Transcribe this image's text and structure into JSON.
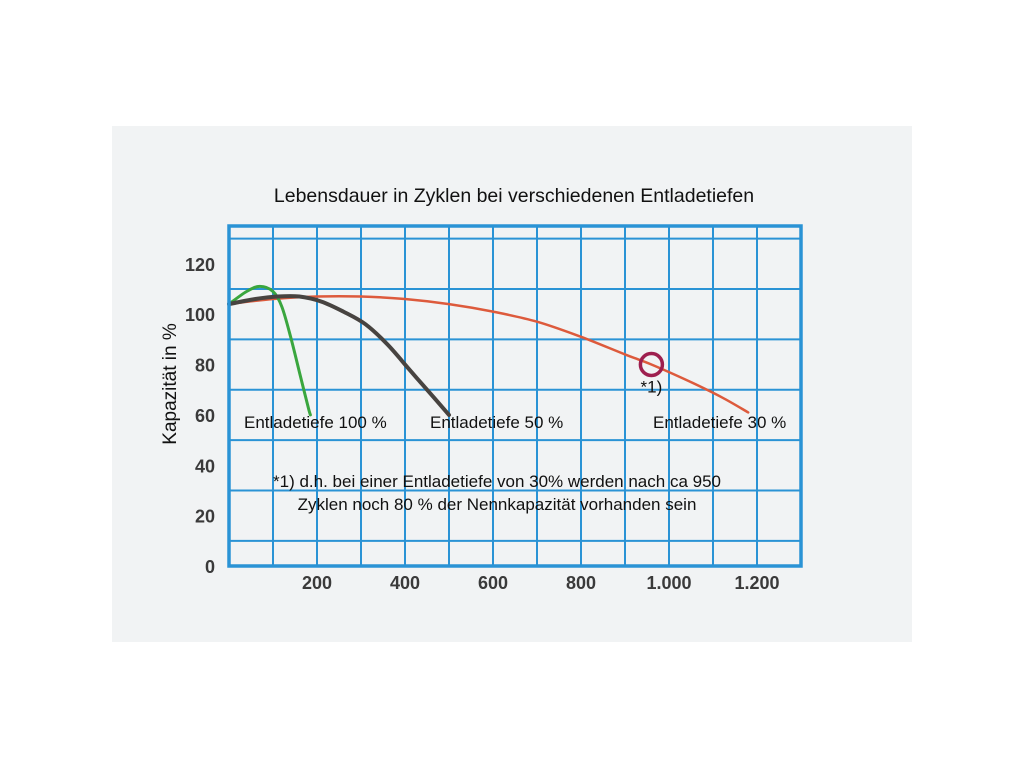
{
  "chart_data": {
    "type": "line",
    "title": "Lebensdauer in Zyklen bei verschiedenen Entladetiefen",
    "xlabel": "",
    "ylabel": "Kapazität in %",
    "xlim": [
      0,
      1300
    ],
    "ylim": [
      0,
      135
    ],
    "grid": true,
    "x_ticks": [
      {
        "value": 200,
        "label": "200"
      },
      {
        "value": 400,
        "label": "400"
      },
      {
        "value": 600,
        "label": "600"
      },
      {
        "value": 800,
        "label": "800"
      },
      {
        "value": 1000,
        "label": "1.000"
      },
      {
        "value": 1200,
        "label": "1.200"
      }
    ],
    "y_ticks": [
      {
        "value": 0,
        "label": "0"
      },
      {
        "value": 20,
        "label": "20"
      },
      {
        "value": 40,
        "label": "40"
      },
      {
        "value": 60,
        "label": "60"
      },
      {
        "value": 80,
        "label": "80"
      },
      {
        "value": 100,
        "label": "100"
      },
      {
        "value": 120,
        "label": "120"
      }
    ],
    "series": [
      {
        "name": "Entladetiefe 100 %",
        "color": "#3aa63e",
        "points": [
          [
            0,
            104
          ],
          [
            40,
            109
          ],
          [
            70,
            111
          ],
          [
            100,
            109
          ],
          [
            120,
            103
          ],
          [
            140,
            91
          ],
          [
            160,
            77
          ],
          [
            180,
            63
          ],
          [
            185,
            60
          ]
        ]
      },
      {
        "name": "Entladetiefe 50 %",
        "color": "#474340",
        "points": [
          [
            0,
            104
          ],
          [
            60,
            106
          ],
          [
            110,
            107
          ],
          [
            160,
            107
          ],
          [
            210,
            105
          ],
          [
            260,
            101
          ],
          [
            310,
            96
          ],
          [
            360,
            88
          ],
          [
            410,
            78
          ],
          [
            460,
            68
          ],
          [
            500,
            60
          ]
        ]
      },
      {
        "name": "Entladetiefe 30 %",
        "color": "#dd5a3c",
        "points": [
          [
            0,
            104
          ],
          [
            100,
            106
          ],
          [
            200,
            107
          ],
          [
            300,
            107
          ],
          [
            400,
            106
          ],
          [
            500,
            104
          ],
          [
            600,
            101
          ],
          [
            700,
            97
          ],
          [
            800,
            91
          ],
          [
            900,
            84
          ],
          [
            960,
            80
          ],
          [
            1050,
            73
          ],
          [
            1120,
            67
          ],
          [
            1180,
            61
          ]
        ]
      }
    ],
    "marker": {
      "x": 960,
      "y": 80,
      "label": "*1)",
      "color": "#9e1f4f"
    },
    "annotations": {
      "series_label_100": "Entladetiefe 100 %",
      "series_label_50": "Entladetiefe 50 %",
      "series_label_30": "Entladetiefe 30 %",
      "footnote_line1": "*1) d.h. bei einer Entladetiefe von 30% werden nach ca 950",
      "footnote_line2": "Zyklen noch 80 % der Nennkapazität vorhanden sein"
    },
    "colors": {
      "frame": "#2a93d5",
      "grid": "#2a93d5"
    }
  }
}
